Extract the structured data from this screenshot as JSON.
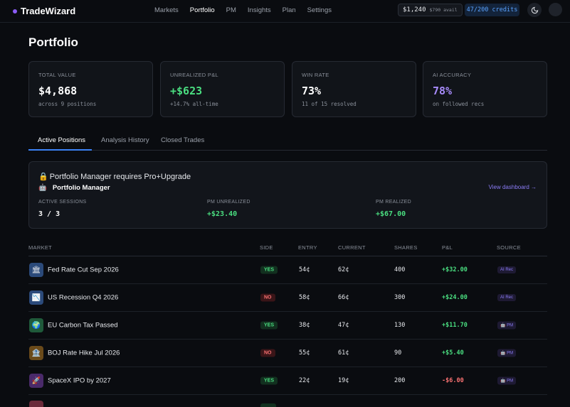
{
  "app": {
    "name": "TradeWizard",
    "accent": "#8b5cf6"
  },
  "nav": {
    "links": [
      "Markets",
      "Portfolio",
      "PM",
      "Insights",
      "Plan",
      "Settings"
    ],
    "active": "Portfolio",
    "balance": "$1,240",
    "balance_available": "$790 avail",
    "credits": "47/200 credits"
  },
  "page": {
    "title": "Portfolio"
  },
  "stats": [
    {
      "label": "TOTAL VALUE",
      "value": "$4,868",
      "sub": "across 9 positions",
      "color": "#ffffff"
    },
    {
      "label": "UNREALIZED P&L",
      "value": "+$623",
      "sub": "+14.7% all-time",
      "color": "#4ade80"
    },
    {
      "label": "WIN RATE",
      "value": "73%",
      "sub": "11 of 15 resolved",
      "color": "#ffffff"
    },
    {
      "label": "AI ACCURACY",
      "value": "78%",
      "sub": "on followed recs",
      "color": "#a78bfa"
    }
  ],
  "tabs": [
    "Active Positions",
    "Analysis History",
    "Closed Trades"
  ],
  "pm_panel": {
    "lock_text": "Portfolio Manager requires Pro+Upgrade",
    "title": "Portfolio Manager",
    "link": "View dashboard →",
    "stats": [
      {
        "label": "ACTIVE SESSIONS",
        "value": "3 / 3",
        "color": "#ffffff"
      },
      {
        "label": "PM UNREALIZED",
        "value": "+$23.40",
        "color": "#4ade80"
      },
      {
        "label": "PM REALIZED",
        "value": "+$67.00",
        "color": "#4ade80"
      }
    ]
  },
  "table": {
    "headers": [
      "MARKET",
      "SIDE",
      "ENTRY",
      "CURRENT",
      "SHARES",
      "P&L",
      "SOURCE"
    ],
    "rows": [
      {
        "icon": "🏛",
        "icon_bg": "#2b4a7a",
        "market": "Fed Rate Cut Sep 2026",
        "side": "YES",
        "entry": "54¢",
        "current": "62¢",
        "shares": "400",
        "pnl": "+$32.00",
        "source": "AI Rec"
      },
      {
        "icon": "📉",
        "icon_bg": "#2b4a7a",
        "market": "US Recession Q4 2026",
        "side": "NO",
        "entry": "58¢",
        "current": "66¢",
        "shares": "300",
        "pnl": "+$24.00",
        "source": "AI Rec"
      },
      {
        "icon": "🌍",
        "icon_bg": "#1f5a3a",
        "market": "EU Carbon Tax Passed",
        "side": "YES",
        "entry": "38¢",
        "current": "47¢",
        "shares": "130",
        "pnl": "+$11.70",
        "source": "🤖 PM"
      },
      {
        "icon": "🏦",
        "icon_bg": "#6a4a1a",
        "market": "BOJ Rate Hike Jul 2026",
        "side": "NO",
        "entry": "55¢",
        "current": "61¢",
        "shares": "90",
        "pnl": "+$5.40",
        "source": "🤖 PM"
      },
      {
        "icon": "🚀",
        "icon_bg": "#4a2a6a",
        "market": "SpaceX IPO by 2027",
        "side": "YES",
        "entry": "22¢",
        "current": "19¢",
        "shares": "200",
        "pnl": "-$6.00",
        "source": "🤖 PM"
      }
    ]
  }
}
